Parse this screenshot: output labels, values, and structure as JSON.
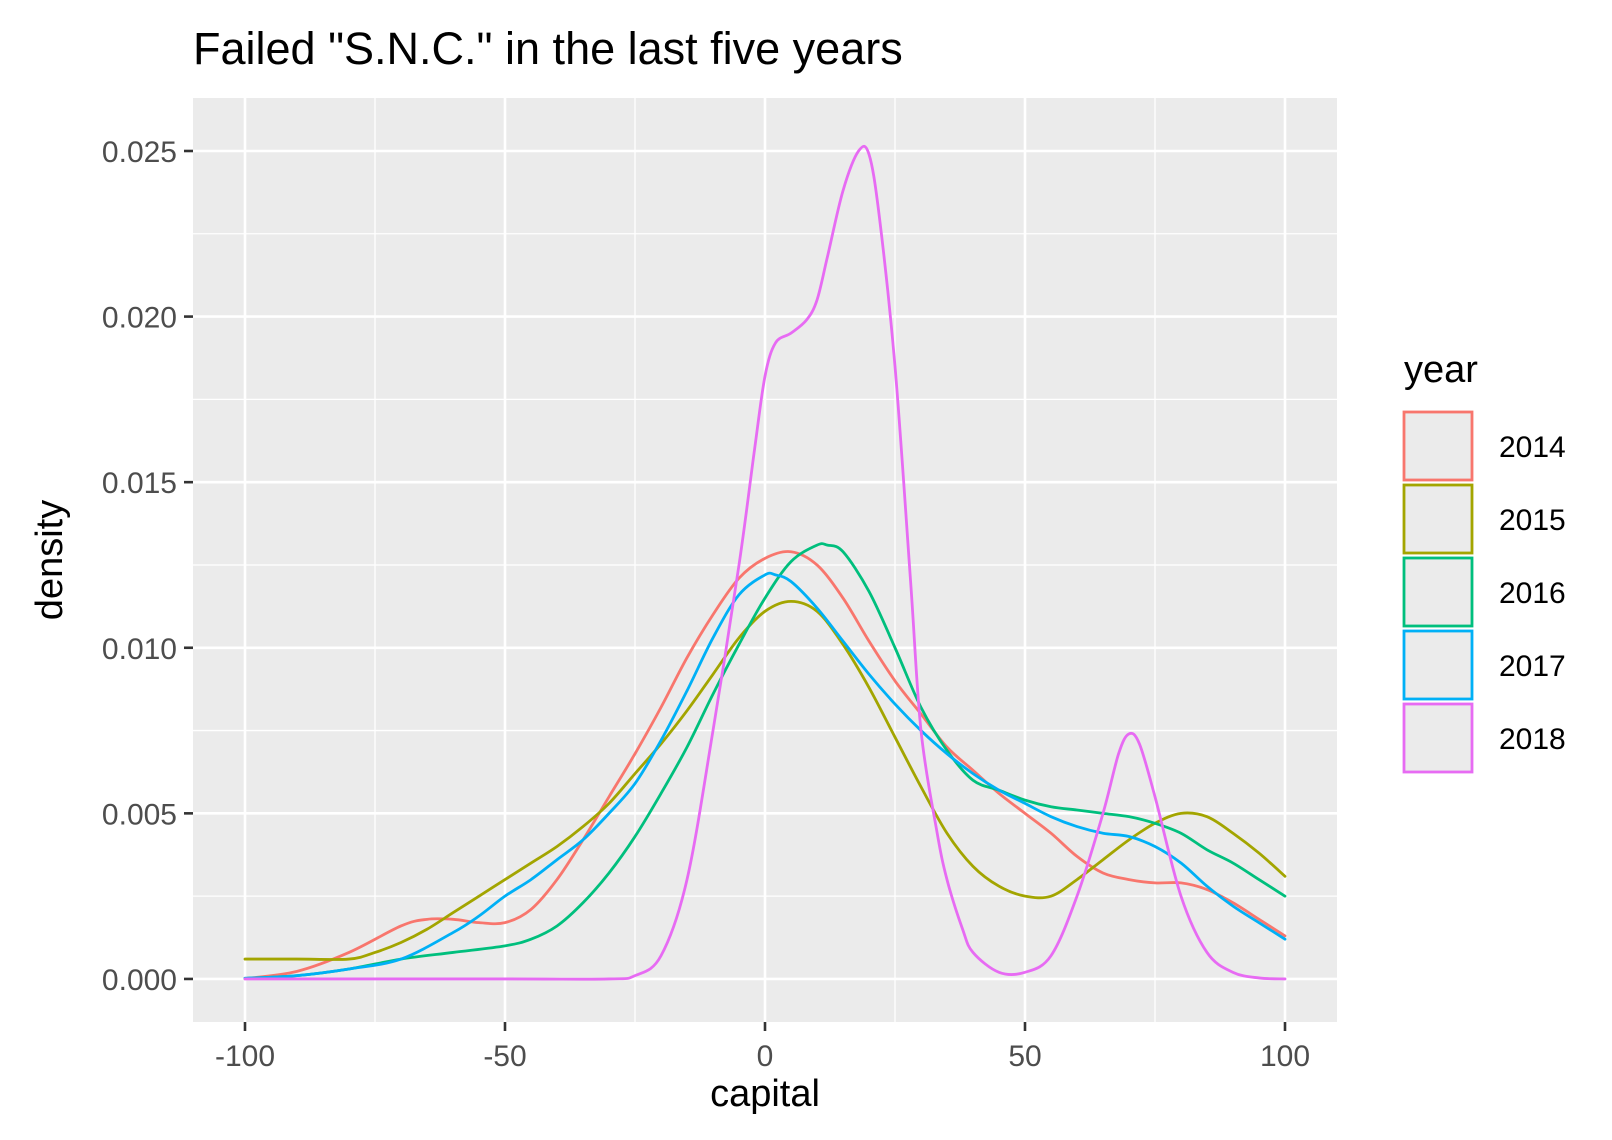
{
  "chart_data": {
    "type": "line",
    "title": "Failed \"S.N.C.\" in the last five years",
    "xlabel": "capital",
    "ylabel": "density",
    "xlim": [
      -110,
      110
    ],
    "ylim": [
      -0.0013,
      0.0266
    ],
    "x_ticks": [
      -100,
      -50,
      0,
      50,
      100
    ],
    "x_tick_labels": [
      "-100",
      "-50",
      "0",
      "50",
      "100"
    ],
    "y_ticks": [
      0,
      0.005,
      0.01,
      0.015,
      0.02,
      0.025
    ],
    "y_tick_labels": [
      "0.000",
      "0.005",
      "0.010",
      "0.015",
      "0.020",
      "0.025"
    ],
    "grid": true,
    "legend": {
      "title": "year",
      "position": "right"
    },
    "series": [
      {
        "name": "2014",
        "color": "#F8766D",
        "x": [
          -100,
          -90,
          -80,
          -70,
          -65,
          -60,
          -55,
          -50,
          -45,
          -40,
          -35,
          -30,
          -25,
          -20,
          -15,
          -10,
          -5,
          0,
          5,
          10,
          15,
          20,
          25,
          30,
          35,
          40,
          45,
          50,
          55,
          60,
          65,
          70,
          75,
          80,
          85,
          90,
          95,
          100
        ],
        "y": [
          1e-05,
          0.00023,
          0.0008,
          0.0016,
          0.0018,
          0.0018,
          0.0017,
          0.0017,
          0.0021,
          0.003,
          0.0042,
          0.0055,
          0.0068,
          0.0082,
          0.0097,
          0.011,
          0.0121,
          0.0127,
          0.0129,
          0.0125,
          0.0115,
          0.0102,
          0.009,
          0.008,
          0.007,
          0.0063,
          0.0056,
          0.005,
          0.0044,
          0.0037,
          0.0032,
          0.003,
          0.0029,
          0.0029,
          0.0027,
          0.0023,
          0.0018,
          0.0013
        ]
      },
      {
        "name": "2015",
        "color": "#A3A500",
        "x": [
          -100,
          -90,
          -80,
          -75,
          -70,
          -65,
          -60,
          -55,
          -50,
          -45,
          -40,
          -35,
          -30,
          -25,
          -20,
          -15,
          -10,
          -5,
          0,
          5,
          10,
          15,
          20,
          25,
          30,
          35,
          40,
          45,
          50,
          55,
          60,
          65,
          70,
          75,
          80,
          85,
          90,
          95,
          100
        ],
        "y": [
          0.0006,
          0.0006,
          0.0006,
          0.0008,
          0.0011,
          0.0015,
          0.002,
          0.0025,
          0.003,
          0.0035,
          0.004,
          0.0046,
          0.0053,
          0.0062,
          0.0071,
          0.0081,
          0.0092,
          0.0103,
          0.0111,
          0.0114,
          0.0111,
          0.0101,
          0.0088,
          0.0073,
          0.0058,
          0.0044,
          0.0034,
          0.0028,
          0.0025,
          0.0025,
          0.003,
          0.0036,
          0.0042,
          0.0047,
          0.005,
          0.0049,
          0.0044,
          0.0038,
          0.0031
        ]
      },
      {
        "name": "2016",
        "color": "#00BF7D",
        "x": [
          -100,
          -90,
          -80,
          -70,
          -60,
          -50,
          -45,
          -40,
          -35,
          -30,
          -25,
          -20,
          -15,
          -10,
          -5,
          0,
          5,
          10,
          12,
          15,
          20,
          25,
          30,
          35,
          40,
          45,
          50,
          55,
          60,
          65,
          70,
          75,
          80,
          85,
          90,
          95,
          100
        ],
        "y": [
          2e-05,
          0.0001,
          0.0003,
          0.0006,
          0.0008,
          0.001,
          0.0012,
          0.0016,
          0.0023,
          0.0032,
          0.0043,
          0.0056,
          0.007,
          0.0086,
          0.0101,
          0.0115,
          0.0126,
          0.0131,
          0.0131,
          0.0129,
          0.0117,
          0.01,
          0.0082,
          0.0069,
          0.006,
          0.0057,
          0.0054,
          0.0052,
          0.0051,
          0.005,
          0.0049,
          0.0047,
          0.0044,
          0.0039,
          0.0035,
          0.003,
          0.0025
        ]
      },
      {
        "name": "2017",
        "color": "#00B0F6",
        "x": [
          -100,
          -90,
          -80,
          -70,
          -60,
          -55,
          -50,
          -45,
          -40,
          -35,
          -30,
          -25,
          -20,
          -15,
          -10,
          -5,
          0,
          2,
          5,
          10,
          15,
          20,
          25,
          30,
          35,
          40,
          45,
          50,
          55,
          60,
          65,
          70,
          75,
          80,
          85,
          90,
          95,
          100
        ],
        "y": [
          2e-05,
          0.0001,
          0.0003,
          0.0006,
          0.0014,
          0.0019,
          0.0025,
          0.003,
          0.0036,
          0.0042,
          0.005,
          0.0059,
          0.0072,
          0.0087,
          0.0103,
          0.0116,
          0.0122,
          0.0122,
          0.012,
          0.0112,
          0.0102,
          0.0092,
          0.0083,
          0.0075,
          0.0068,
          0.0062,
          0.0057,
          0.0053,
          0.0049,
          0.0046,
          0.0044,
          0.0043,
          0.004,
          0.0035,
          0.0028,
          0.0022,
          0.0017,
          0.0012
        ]
      },
      {
        "name": "2018",
        "color": "#E76BF3",
        "x": [
          -100,
          -50,
          -30,
          -25,
          -20,
          -15,
          -10,
          -5,
          -2,
          0,
          2,
          5,
          8,
          10,
          12,
          15,
          18,
          20,
          22,
          25,
          28,
          30,
          33,
          35,
          38,
          40,
          45,
          50,
          55,
          60,
          65,
          68,
          70,
          72,
          75,
          80,
          85,
          90,
          95,
          100
        ],
        "y": [
          0,
          0,
          0,
          0.0001,
          0.0007,
          0.003,
          0.0075,
          0.0125,
          0.016,
          0.0182,
          0.0192,
          0.0195,
          0.0199,
          0.0205,
          0.0218,
          0.0238,
          0.025,
          0.0249,
          0.023,
          0.0185,
          0.012,
          0.0075,
          0.0045,
          0.003,
          0.0015,
          0.0008,
          0.0002,
          0.0002,
          0.0007,
          0.0025,
          0.005,
          0.0068,
          0.0074,
          0.0071,
          0.0055,
          0.0025,
          0.0008,
          0.0002,
          3e-05,
          0
        ]
      }
    ]
  }
}
